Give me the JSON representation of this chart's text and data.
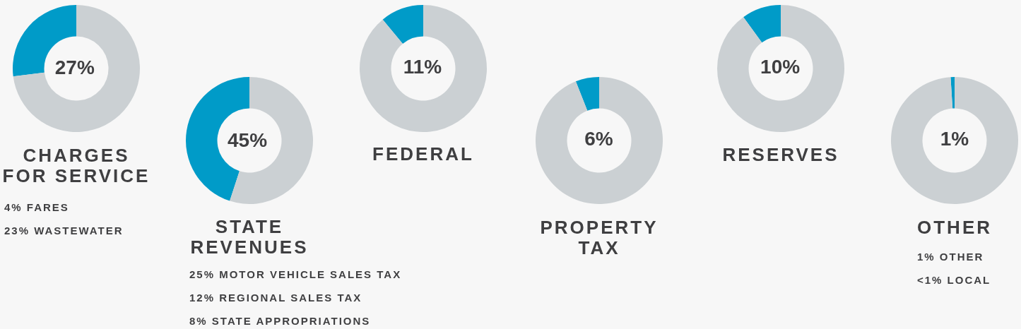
{
  "chart_data": [
    {
      "type": "donut",
      "title": "CHARGES FOR SERVICE",
      "categories": [
        null,
        null
      ],
      "values": [
        27,
        73
      ],
      "colors": [
        "#009bc8",
        "#cbd0d3"
      ],
      "value_labels": [
        "27%",
        null
      ],
      "annotations": [
        "4% FARES",
        "23% WASTEWATER"
      ]
    },
    {
      "type": "donut",
      "title": "STATE REVENUES",
      "categories": [
        null,
        null
      ],
      "values": [
        45,
        55
      ],
      "colors": [
        "#009bc8",
        "#cbd0d3"
      ],
      "value_labels": [
        "45%",
        null
      ],
      "annotations": [
        "25% MOTOR VEHICLE SALES TAX",
        "12% REGIONAL SALES TAX",
        "8% STATE APPROPRIATIONS"
      ]
    },
    {
      "type": "donut",
      "title": "FEDERAL",
      "categories": [
        null,
        null
      ],
      "values": [
        11,
        89
      ],
      "colors": [
        "#009bc8",
        "#cbd0d3"
      ],
      "value_labels": [
        "11%",
        null
      ]
    },
    {
      "type": "donut",
      "title": "PROPERTY TAX",
      "categories": [
        null,
        null
      ],
      "values": [
        6,
        94
      ],
      "colors": [
        "#009bc8",
        "#cbd0d3"
      ],
      "value_labels": [
        "6%",
        null
      ]
    },
    {
      "type": "donut",
      "title": "RESERVES",
      "categories": [
        null,
        null
      ],
      "values": [
        10,
        90
      ],
      "colors": [
        "#009bc8",
        "#cbd0d3"
      ],
      "value_labels": [
        "10%",
        null
      ]
    },
    {
      "type": "donut",
      "title": "OTHER",
      "categories": [
        null,
        null
      ],
      "values": [
        1,
        99
      ],
      "colors": [
        "#009bc8",
        "#cbd0d3"
      ],
      "value_labels": [
        "1%",
        null
      ],
      "annotations": [
        "1% OTHER",
        "<1% LOCAL"
      ]
    }
  ]
}
